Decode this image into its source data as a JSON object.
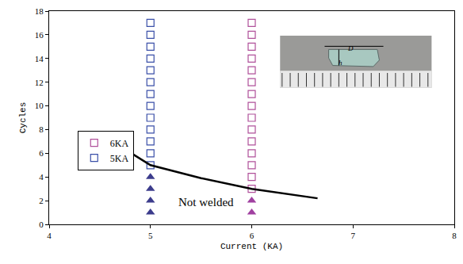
{
  "chart_data": {
    "type": "scatter",
    "x_label": "Current (KA)",
    "y_label": "Cycles",
    "xlim": [
      4,
      8
    ],
    "xticks": [
      4,
      5,
      6,
      7,
      8
    ],
    "ylim": [
      0,
      18
    ],
    "yticks": [
      0,
      2,
      4,
      6,
      8,
      10,
      12,
      14,
      16,
      18
    ],
    "grid": false,
    "legend": "left",
    "series": [
      {
        "name": "6KA",
        "color": "#b0509a",
        "marker": "square-open",
        "type": "scatter",
        "x": [
          6,
          6,
          6,
          6,
          6,
          6,
          6,
          6,
          6,
          6,
          6,
          6,
          6,
          6,
          6
        ],
        "values": [
          3,
          4,
          5,
          6,
          7,
          8,
          9,
          10,
          11,
          12,
          13,
          14,
          15,
          16,
          17
        ]
      },
      {
        "name": "5KA",
        "color": "#3a4fa8",
        "marker": "square-open",
        "type": "scatter",
        "x": [
          5,
          5,
          5,
          5,
          5,
          5,
          5,
          5,
          5,
          5,
          5,
          5,
          5
        ],
        "values": [
          5,
          6,
          7,
          8,
          9,
          10,
          11,
          12,
          13,
          14,
          15,
          16,
          17
        ]
      },
      {
        "color": "#3c3c8c",
        "marker": "triangle-up",
        "type": "scatter",
        "x": [
          5,
          5,
          5,
          5
        ],
        "values": [
          1,
          2,
          3,
          4
        ]
      },
      {
        "color": "#a040a0",
        "marker": "triangle-up",
        "type": "scatter",
        "x": [
          6,
          6
        ],
        "values": [
          1,
          2
        ]
      },
      {
        "color": "#000000",
        "type": "line",
        "line_style": "solid",
        "x": [
          4.7,
          5,
          5.5,
          6,
          6.65
        ],
        "values": [
          6.6,
          5,
          3.9,
          3,
          2.2
        ]
      }
    ],
    "annotations": [
      {
        "text": "Not welded",
        "x": 5.55,
        "y": 1.9
      }
    ],
    "inset_labels": [
      "D",
      "h"
    ]
  }
}
